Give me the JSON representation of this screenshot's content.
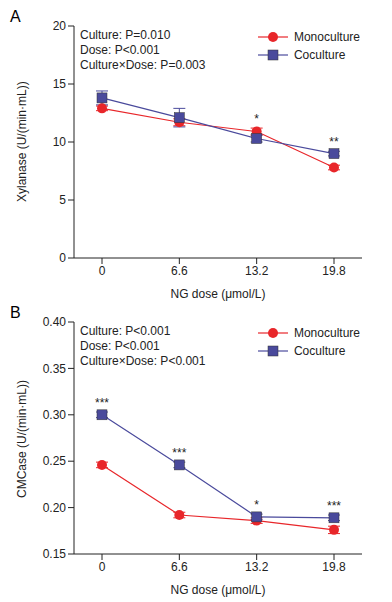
{
  "chart_data": [
    {
      "type": "line",
      "title": "A",
      "annotations": [
        "Culture: P=0.010",
        "Dose: P<0.001",
        "Culture×Dose: P=0.003"
      ],
      "x_label": "NG dose (μmol/L)",
      "y_label": "Xylanase (U/(min·mL))",
      "categories": [
        "0",
        "6.6",
        "13.2",
        "19.8"
      ],
      "ylim": [
        0,
        20
      ],
      "yticks": [
        0,
        5,
        10,
        15,
        20
      ],
      "legend": "top-right",
      "series": [
        {
          "name": "Monoculture",
          "color": "#e8262a",
          "marker": "circle",
          "values": [
            12.9,
            11.7,
            10.9,
            7.8
          ],
          "errors": [
            0.2,
            0.3,
            0.3,
            0.2
          ]
        },
        {
          "name": "Coculture",
          "color": "#4a4a9c",
          "marker": "square",
          "values": [
            13.8,
            12.1,
            10.3,
            9.0
          ],
          "errors": [
            0.6,
            0.8,
            0.3,
            0.2
          ]
        }
      ],
      "significance": [
        null,
        null,
        "*",
        "**"
      ]
    },
    {
      "type": "line",
      "title": "B",
      "annotations": [
        "Culture: P<0.001",
        "Dose: P<0.001",
        "Culture×Dose: P<0.001"
      ],
      "x_label": "NG dose (μmol/L)",
      "y_label": "CMCase (U/(min·mL))",
      "categories": [
        "0",
        "6.6",
        "13.2",
        "19.8"
      ],
      "ylim": [
        0.15,
        0.4
      ],
      "yticks": [
        0.15,
        {
          "value": 0.2,
          "label": "0.20"
        },
        0.25,
        {
          "value": 0.3,
          "label": "0.30"
        },
        0.35,
        {
          "value": 0.4,
          "label": "0.40"
        }
      ],
      "legend": "top-right",
      "series": [
        {
          "name": "Monoculture",
          "color": "#e8262a",
          "marker": "circle",
          "values": [
            0.246,
            0.192,
            0.186,
            0.176
          ],
          "errors": [
            0.003,
            0.003,
            0.003,
            0.004
          ]
        },
        {
          "name": "Coculture",
          "color": "#4a4a9c",
          "marker": "square",
          "values": [
            0.3,
            0.246,
            0.19,
            0.189
          ],
          "errors": [
            0.003,
            0.003,
            0.003,
            0.003
          ]
        }
      ],
      "significance": [
        "***",
        "***",
        "*",
        "***"
      ]
    }
  ]
}
